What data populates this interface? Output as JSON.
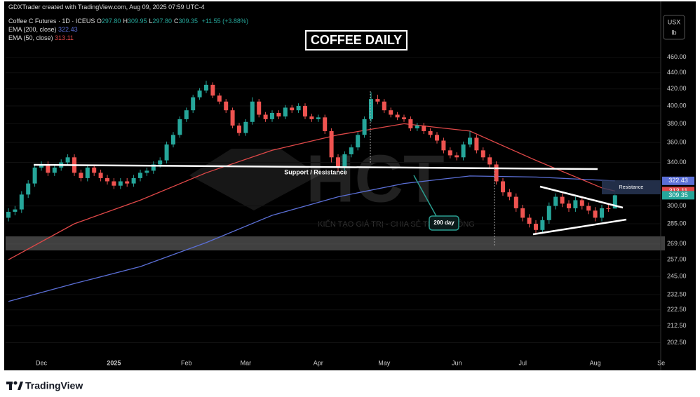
{
  "chart_data": {
    "type": "candlestick",
    "attribution": "GDXTrader created with TradingView.com, Aug 09, 2025 07:59 UTC-4",
    "symbol": "Coffee C Futures · 1D · ICEUS",
    "ohlc": [
      {
        "label": "O",
        "value": "297.80"
      },
      {
        "label": "H",
        "value": "309.95"
      },
      {
        "label": "L",
        "value": "297.80"
      },
      {
        "label": "C",
        "value": "309.35"
      }
    ],
    "change": "+11.55 (+3.88%)",
    "title": "COFFEE DAILY",
    "currency": "USX",
    "unit": "lb",
    "brand": "TradingView",
    "watermark": {
      "logo": "HCT",
      "slogan": "KIẾN TẠO GIÁ TRỊ - CHIA SẺ THÀNH CÔNG"
    },
    "annotations": {
      "support": "Support / Resistance",
      "ema_note": "200 day",
      "resistance": "Resistance"
    },
    "up_color": "#26a69a",
    "down_color": "#ef5350",
    "log_scale": true,
    "categories": [
      null,
      null,
      null,
      null,
      null,
      "Dec",
      null,
      null,
      null,
      null,
      null,
      null,
      null,
      null,
      null,
      null,
      "2025",
      null,
      null,
      null,
      null,
      null,
      null,
      null,
      null,
      null,
      null,
      "Feb",
      null,
      null,
      null,
      null,
      null,
      null,
      null,
      null,
      "Mar",
      null,
      null,
      null,
      null,
      null,
      null,
      null,
      null,
      null,
      null,
      "Apr",
      null,
      null,
      null,
      null,
      null,
      null,
      null,
      null,
      null,
      "May",
      null,
      null,
      null,
      null,
      null,
      null,
      null,
      null,
      null,
      null,
      "Jun",
      null,
      null,
      null,
      null,
      null,
      null,
      null,
      null,
      null,
      "Jul",
      null,
      null,
      null,
      null,
      null,
      null,
      null,
      null,
      null,
      null,
      "Aug",
      null,
      null,
      null,
      null,
      null,
      null,
      null,
      null,
      null,
      "Se",
      null
    ],
    "open": [
      290,
      295,
      297,
      310,
      320,
      335,
      338,
      330,
      335,
      340,
      345,
      330,
      325,
      335,
      330,
      325,
      322,
      318,
      322,
      320,
      325,
      330,
      332,
      338,
      342,
      358,
      368,
      385,
      395,
      410,
      418,
      425,
      412,
      405,
      395,
      378,
      370,
      382,
      405,
      390,
      385,
      392,
      388,
      398,
      395,
      400,
      388,
      385,
      387,
      372,
      345,
      335,
      348,
      355,
      368,
      385,
      408,
      405,
      395,
      390,
      387,
      385,
      375,
      378,
      372,
      368,
      362,
      352,
      347,
      345,
      358,
      365,
      352,
      345,
      338,
      322,
      312,
      308,
      298,
      290,
      285,
      280,
      288,
      300,
      308,
      302,
      298,
      305,
      300,
      296,
      290,
      298,
      297.8,
      null,
      null,
      null,
      null,
      null,
      null,
      null,
      null
    ],
    "high": [
      298,
      300,
      313,
      323,
      338,
      341,
      341,
      338,
      343,
      348,
      348,
      333,
      338,
      338,
      333,
      328,
      325,
      325,
      325,
      328,
      333,
      335,
      341,
      345,
      361,
      371,
      388,
      398,
      413,
      421,
      430,
      428,
      415,
      408,
      398,
      381,
      385,
      410,
      408,
      393,
      395,
      395,
      401,
      401,
      403,
      403,
      391,
      390,
      390,
      375,
      348,
      351,
      358,
      371,
      388,
      416,
      413,
      408,
      398,
      393,
      390,
      388,
      381,
      381,
      375,
      371,
      365,
      355,
      350,
      361,
      372,
      368,
      355,
      348,
      341,
      325,
      315,
      311,
      301,
      293,
      288,
      291,
      303,
      311,
      311,
      305,
      308,
      308,
      303,
      299,
      301,
      301,
      309.95,
      null,
      null,
      null,
      null,
      null,
      null,
      null,
      null
    ],
    "low": [
      287,
      292,
      294,
      307,
      317,
      332,
      327,
      327,
      332,
      337,
      327,
      322,
      322,
      327,
      322,
      319,
      315,
      315,
      317,
      317,
      322,
      327,
      329,
      335,
      339,
      355,
      365,
      382,
      392,
      407,
      415,
      409,
      402,
      392,
      375,
      367,
      367,
      379,
      387,
      382,
      382,
      385,
      385,
      392,
      392,
      385,
      382,
      382,
      369,
      340,
      332,
      332,
      345,
      352,
      365,
      382,
      402,
      392,
      387,
      384,
      382,
      372,
      372,
      369,
      365,
      359,
      349,
      344,
      342,
      342,
      355,
      349,
      342,
      335,
      319,
      309,
      305,
      295,
      287,
      282,
      277,
      277,
      285,
      297,
      299,
      295,
      295,
      297,
      293,
      287,
      287,
      295,
      297.8,
      null,
      null,
      null,
      null,
      null,
      null,
      null,
      null
    ],
    "close": [
      295,
      297,
      310,
      320,
      335,
      338,
      330,
      335,
      340,
      345,
      330,
      325,
      335,
      330,
      325,
      322,
      318,
      322,
      320,
      325,
      330,
      332,
      338,
      342,
      358,
      368,
      385,
      395,
      410,
      418,
      425,
      412,
      405,
      395,
      378,
      370,
      382,
      405,
      390,
      385,
      392,
      388,
      398,
      395,
      400,
      388,
      385,
      387,
      372,
      345,
      335,
      348,
      355,
      368,
      385,
      408,
      405,
      395,
      390,
      387,
      385,
      375,
      378,
      372,
      368,
      362,
      352,
      347,
      345,
      358,
      365,
      352,
      345,
      338,
      322,
      312,
      308,
      298,
      290,
      285,
      280,
      288,
      300,
      308,
      302,
      298,
      305,
      300,
      296,
      290,
      298,
      297.8,
      309.35,
      null,
      null,
      null,
      null,
      null,
      null,
      null,
      null
    ],
    "series": [
      {
        "name": "EMA (200, close)",
        "color": "#5b6fd6",
        "last": 322.43,
        "x": [
          0,
          10,
          20,
          30,
          40,
          50,
          60,
          70,
          80,
          90,
          92
        ],
        "values": [
          228,
          240,
          252,
          270,
          292,
          308,
          320,
          327,
          326,
          323,
          322.43
        ]
      },
      {
        "name": "EMA (50, close)",
        "color": "#e04848",
        "last": 313.11,
        "x": [
          0,
          10,
          20,
          30,
          40,
          50,
          60,
          70,
          80,
          90,
          92
        ],
        "values": [
          257,
          285,
          305,
          330,
          352,
          368,
          380,
          372,
          342,
          316,
          313.11
        ]
      }
    ],
    "ylim": [
      187,
      523
    ],
    "yticks": [
      {
        "value": 202.5,
        "label": "202.50"
      },
      {
        "value": 212.5,
        "label": "212.50"
      },
      {
        "value": 222.5,
        "label": "222.50"
      },
      {
        "value": 232.5,
        "label": "232.50"
      },
      {
        "value": 245,
        "label": "245.00"
      },
      {
        "value": 257,
        "label": "257.00"
      },
      {
        "value": 269,
        "label": "269.00"
      },
      {
        "value": 285,
        "label": "285.00"
      },
      {
        "value": 300,
        "label": "300.00"
      },
      {
        "value": 340,
        "label": "340.00"
      },
      {
        "value": 360,
        "label": "360.00"
      },
      {
        "value": 380,
        "label": "380.00"
      },
      {
        "value": 400,
        "label": "400.00"
      },
      {
        "value": 420,
        "label": "420.00"
      },
      {
        "value": 440,
        "label": "440.00"
      },
      {
        "value": 460,
        "label": "460.00"
      }
    ]
  }
}
